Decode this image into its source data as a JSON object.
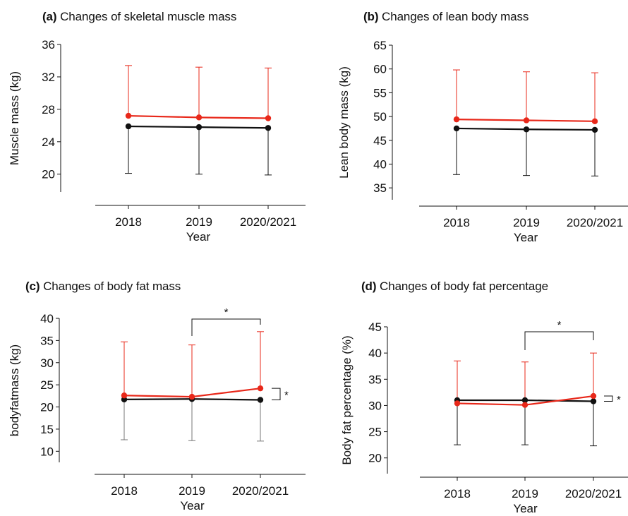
{
  "chart_data": [
    {
      "id": "a",
      "type": "line",
      "title_letter": "(a)",
      "title_text": "Changes of skeletal muscle mass",
      "xlabel": "Year",
      "ylabel": "Muscle mass (kg)",
      "categories": [
        "2018",
        "2019",
        "2020/2021"
      ],
      "yticks": [
        20,
        24,
        28,
        32,
        36
      ],
      "ylim": [
        17.8,
        36.0
      ],
      "colors": {
        "red": "#e8281a",
        "black": "#111111"
      },
      "series": [
        {
          "color": "red",
          "values": [
            27.2,
            27.0,
            26.9
          ],
          "errors": [
            6.2,
            6.2,
            6.2
          ]
        },
        {
          "color": "black",
          "values": [
            25.9,
            25.8,
            25.7
          ],
          "errors": [
            5.8,
            5.8,
            5.8
          ]
        }
      ],
      "significance": {
        "bracket": null,
        "side": null,
        "star": "*"
      }
    },
    {
      "id": "b",
      "type": "line",
      "title_letter": "(b)",
      "title_text": "Changes of lean body mass",
      "xlabel": "Year",
      "ylabel": "Lean body mass (kg)",
      "categories": [
        "2018",
        "2019",
        "2020/2021"
      ],
      "yticks": [
        35,
        40,
        45,
        50,
        55,
        60,
        65
      ],
      "ylim": [
        32.5,
        65.0
      ],
      "colors": {
        "red": "#e8281a",
        "black": "#111111"
      },
      "series": [
        {
          "color": "red",
          "values": [
            49.4,
            49.2,
            49.0
          ],
          "errors": [
            10.4,
            10.2,
            10.2
          ]
        },
        {
          "color": "black",
          "values": [
            47.5,
            47.3,
            47.2
          ],
          "errors": [
            9.7,
            9.7,
            9.7
          ]
        }
      ],
      "significance": {
        "bracket": null,
        "side": null,
        "star": "*"
      }
    },
    {
      "id": "c",
      "type": "line",
      "title_letter": "(c)",
      "title_text": "Changes of body fat mass",
      "xlabel": "Year",
      "ylabel": "bodyfatmass (kg)",
      "categories": [
        "2018",
        "2019",
        "2020/2021"
      ],
      "yticks": [
        10,
        15,
        20,
        25,
        30,
        35,
        40
      ],
      "ylim": [
        7.5,
        40.0
      ],
      "colors": {
        "red": "#e8281a",
        "black": "#111111"
      },
      "series": [
        {
          "color": "red",
          "values": [
            22.6,
            22.3,
            24.2
          ],
          "errors": [
            12.1,
            11.7,
            12.8
          ]
        },
        {
          "color": "black",
          "values": [
            21.7,
            21.8,
            21.6
          ],
          "errors": [
            9.1,
            9.4,
            9.3
          ]
        }
      ],
      "significance": {
        "bracket": [
          1,
          2
        ],
        "side": true,
        "star": "*"
      }
    },
    {
      "id": "d",
      "type": "line",
      "title_letter": "(d)",
      "title_text": "Changes of body fat percentage",
      "xlabel": "Year",
      "ylabel": "Body fat percentage (%)",
      "categories": [
        "2018",
        "2019",
        "2020/2021"
      ],
      "yticks": [
        20,
        25,
        30,
        35,
        40,
        45
      ],
      "ylim": [
        17.0,
        45.0
      ],
      "colors": {
        "red": "#e8281a",
        "black": "#111111"
      },
      "series": [
        {
          "color": "red",
          "values": [
            30.4,
            30.1,
            31.8
          ],
          "errors": [
            8.1,
            8.2,
            8.2
          ]
        },
        {
          "color": "black",
          "values": [
            31.0,
            31.0,
            30.8
          ],
          "errors": [
            8.5,
            8.5,
            8.5
          ]
        }
      ],
      "significance": {
        "bracket": [
          1,
          2
        ],
        "side": true,
        "star": "*"
      }
    }
  ]
}
